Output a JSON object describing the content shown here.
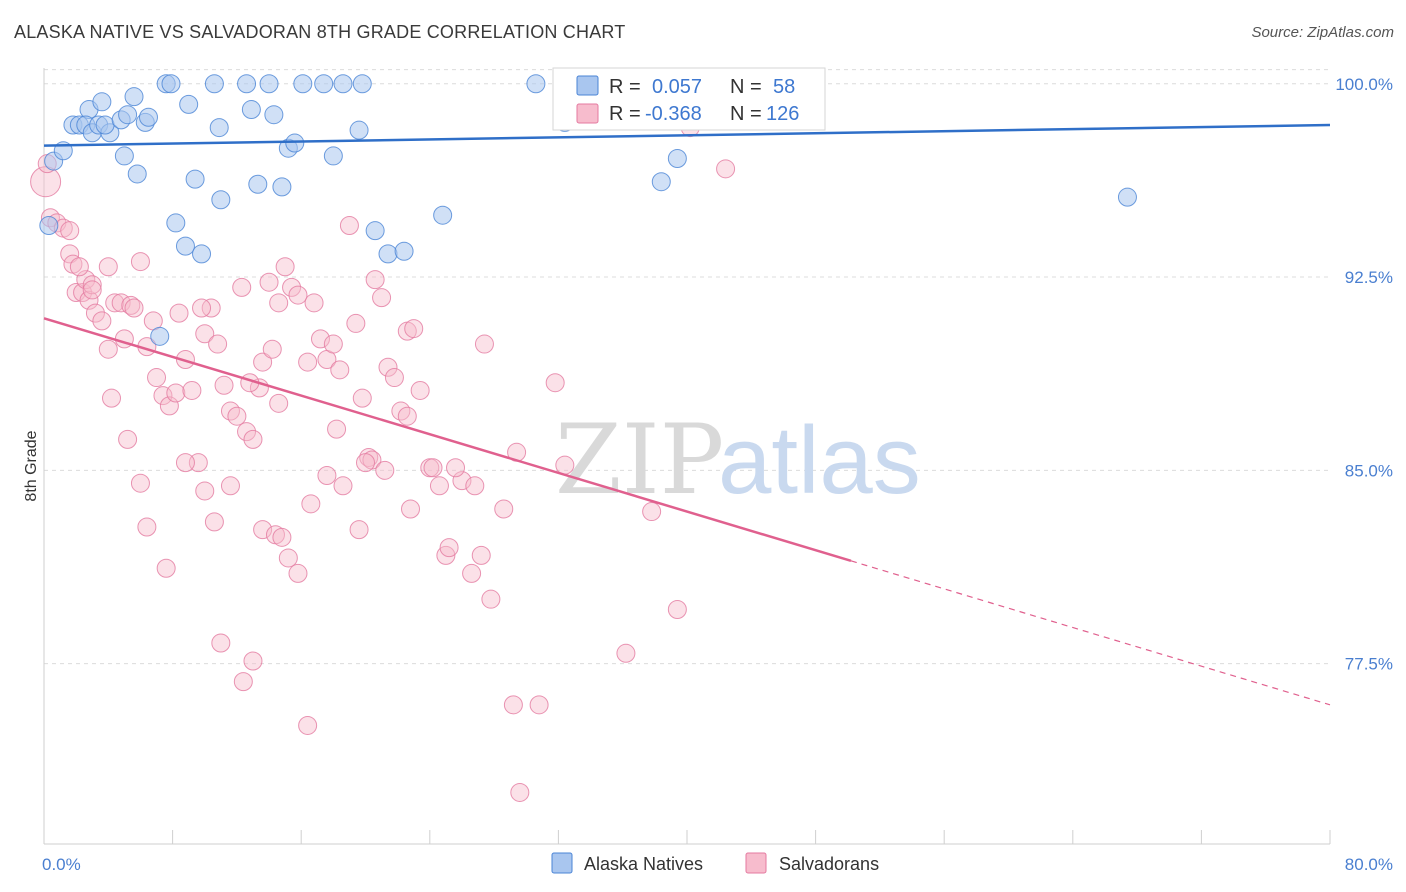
{
  "title": "ALASKA NATIVE VS SALVADORAN 8TH GRADE CORRELATION CHART",
  "source": "Source: ZipAtlas.com",
  "watermark": {
    "zip": "ZIP",
    "atlas": "atlas"
  },
  "colors": {
    "blue_fill": "#a9c6ef",
    "blue_stroke": "#4a84d6",
    "blue_line": "#2f6fc8",
    "pink_fill": "#f7bccd",
    "pink_stroke": "#e47aa0",
    "pink_line": "#e0608e",
    "grid": "#dcdcdc",
    "tick_text": "#4a7fd0"
  },
  "legend": {
    "r_label": "R =",
    "n_label": "N =",
    "rows": [
      {
        "series": "Alaska Natives",
        "r": "0.057",
        "n": "58"
      },
      {
        "series": "Salvadorans",
        "r": "-0.368",
        "n": "126"
      }
    ]
  },
  "chart_data": {
    "type": "scatter",
    "title": "ALASKA NATIVE VS SALVADORAN 8TH GRADE CORRELATION CHART",
    "xlabel": "",
    "ylabel": "8th Grade",
    "xlim": [
      0,
      80
    ],
    "ylim": [
      70.5,
      101.0
    ],
    "x_tick_labels": [
      "0.0%",
      "80.0%"
    ],
    "y_ticks": [
      77.5,
      85.0,
      92.5,
      100.0
    ],
    "y_tick_labels": [
      "77.5%",
      "85.0%",
      "92.5%",
      "100.0%"
    ],
    "grid": "horizontal dashed",
    "legend_position": "top-center",
    "series": [
      {
        "name": "Alaska Natives",
        "trend": {
          "x0": 0,
          "y0": 97.6,
          "x1": 80,
          "y1": 98.4,
          "dashed_from": null
        },
        "points": [
          [
            0.3,
            94.5
          ],
          [
            0.6,
            97.0
          ],
          [
            1.2,
            97.4
          ],
          [
            1.8,
            98.4
          ],
          [
            2.2,
            98.4
          ],
          [
            2.8,
            99.0
          ],
          [
            2.6,
            98.4
          ],
          [
            3.0,
            98.1
          ],
          [
            3.4,
            98.4
          ],
          [
            4.1,
            98.1
          ],
          [
            3.8,
            98.4
          ],
          [
            3.6,
            99.3
          ],
          [
            4.8,
            98.6
          ],
          [
            5.2,
            98.8
          ],
          [
            5.6,
            99.5
          ],
          [
            6.3,
            98.5
          ],
          [
            6.5,
            98.7
          ],
          [
            5.0,
            97.2
          ],
          [
            5.8,
            96.5
          ],
          [
            7.6,
            100.0
          ],
          [
            7.9,
            100.0
          ],
          [
            9.0,
            99.2
          ],
          [
            10.6,
            100.0
          ],
          [
            10.9,
            98.3
          ],
          [
            12.6,
            100.0
          ],
          [
            12.9,
            99.0
          ],
          [
            14.0,
            100.0
          ],
          [
            14.3,
            98.8
          ],
          [
            16.1,
            100.0
          ],
          [
            17.4,
            100.0
          ],
          [
            18.6,
            100.0
          ],
          [
            19.8,
            100.0
          ],
          [
            18.0,
            97.2
          ],
          [
            19.6,
            98.2
          ],
          [
            15.2,
            97.5
          ],
          [
            15.6,
            97.7
          ],
          [
            13.3,
            96.1
          ],
          [
            14.8,
            96.0
          ],
          [
            11.0,
            95.5
          ],
          [
            9.4,
            96.3
          ],
          [
            8.2,
            94.6
          ],
          [
            8.8,
            93.7
          ],
          [
            9.8,
            93.4
          ],
          [
            20.6,
            94.3
          ],
          [
            21.4,
            93.4
          ],
          [
            22.4,
            93.5
          ],
          [
            24.8,
            94.9
          ],
          [
            30.6,
            100.0
          ],
          [
            32.4,
            98.5
          ],
          [
            35.6,
            100.0
          ],
          [
            38.4,
            96.2
          ],
          [
            38.6,
            100.0
          ],
          [
            38.8,
            98.6
          ],
          [
            39.4,
            97.1
          ],
          [
            42.8,
            100.0
          ],
          [
            43.6,
            100.0
          ],
          [
            67.4,
            95.6
          ],
          [
            7.2,
            90.2
          ]
        ]
      },
      {
        "name": "Salvadorans",
        "trend": {
          "x0": 0,
          "y0": 90.9,
          "x1": 80,
          "y1": 75.9,
          "dashed_from": 50.2
        },
        "points": [
          [
            0.1,
            96.2
          ],
          [
            0.2,
            96.9
          ],
          [
            0.4,
            94.8
          ],
          [
            0.8,
            94.6
          ],
          [
            1.2,
            94.4
          ],
          [
            1.6,
            93.4
          ],
          [
            1.8,
            93.0
          ],
          [
            2.0,
            91.9
          ],
          [
            2.4,
            91.9
          ],
          [
            2.6,
            92.4
          ],
          [
            2.8,
            91.6
          ],
          [
            3.0,
            92.2
          ],
          [
            3.2,
            91.1
          ],
          [
            3.6,
            90.8
          ],
          [
            4.0,
            92.9
          ],
          [
            4.4,
            91.5
          ],
          [
            4.8,
            91.5
          ],
          [
            5.0,
            90.1
          ],
          [
            5.4,
            91.4
          ],
          [
            6.0,
            93.1
          ],
          [
            6.4,
            89.8
          ],
          [
            6.8,
            90.8
          ],
          [
            7.0,
            88.6
          ],
          [
            7.4,
            87.9
          ],
          [
            7.8,
            87.5
          ],
          [
            8.2,
            88.0
          ],
          [
            8.4,
            91.1
          ],
          [
            8.8,
            89.3
          ],
          [
            9.2,
            88.1
          ],
          [
            9.6,
            85.3
          ],
          [
            10.0,
            90.3
          ],
          [
            10.4,
            91.3
          ],
          [
            10.8,
            89.9
          ],
          [
            11.2,
            88.3
          ],
          [
            11.6,
            87.3
          ],
          [
            12.0,
            87.1
          ],
          [
            12.3,
            92.1
          ],
          [
            12.6,
            86.5
          ],
          [
            13.0,
            86.2
          ],
          [
            13.4,
            88.2
          ],
          [
            13.6,
            89.2
          ],
          [
            14.0,
            92.3
          ],
          [
            14.2,
            89.7
          ],
          [
            14.6,
            91.5
          ],
          [
            15.0,
            92.9
          ],
          [
            15.4,
            92.1
          ],
          [
            15.8,
            91.8
          ],
          [
            16.4,
            89.2
          ],
          [
            16.8,
            91.5
          ],
          [
            17.2,
            90.1
          ],
          [
            17.6,
            89.3
          ],
          [
            18.0,
            89.9
          ],
          [
            18.4,
            88.9
          ],
          [
            19.0,
            94.5
          ],
          [
            19.4,
            90.7
          ],
          [
            19.8,
            87.8
          ],
          [
            20.2,
            85.5
          ],
          [
            20.6,
            92.4
          ],
          [
            21.0,
            91.7
          ],
          [
            21.4,
            89.0
          ],
          [
            21.8,
            88.6
          ],
          [
            22.2,
            87.3
          ],
          [
            22.6,
            90.4
          ],
          [
            23.0,
            90.5
          ],
          [
            23.4,
            88.1
          ],
          [
            24.0,
            85.1
          ],
          [
            24.6,
            84.4
          ],
          [
            25.0,
            81.7
          ],
          [
            25.2,
            82.0
          ],
          [
            26.0,
            84.6
          ],
          [
            26.6,
            81.0
          ],
          [
            27.4,
            89.9
          ],
          [
            28.6,
            83.5
          ],
          [
            29.4,
            85.7
          ],
          [
            31.8,
            88.4
          ],
          [
            32.4,
            85.2
          ],
          [
            36.2,
            77.9
          ],
          [
            37.8,
            83.4
          ],
          [
            39.4,
            79.6
          ],
          [
            40.2,
            98.3
          ],
          [
            42.4,
            96.7
          ],
          [
            33.0,
            100.0
          ],
          [
            4.0,
            89.7
          ],
          [
            4.2,
            87.8
          ],
          [
            5.2,
            86.2
          ],
          [
            6.0,
            84.5
          ],
          [
            6.4,
            82.8
          ],
          [
            7.6,
            81.2
          ],
          [
            8.8,
            85.3
          ],
          [
            10.0,
            84.2
          ],
          [
            10.6,
            83.0
          ],
          [
            11.0,
            78.3
          ],
          [
            11.6,
            84.4
          ],
          [
            12.4,
            76.8
          ],
          [
            13.0,
            77.6
          ],
          [
            13.6,
            82.7
          ],
          [
            14.4,
            82.5
          ],
          [
            14.8,
            82.4
          ],
          [
            15.2,
            81.6
          ],
          [
            15.8,
            81.0
          ],
          [
            16.6,
            83.7
          ],
          [
            17.6,
            84.8
          ],
          [
            18.6,
            84.4
          ],
          [
            19.6,
            82.7
          ],
          [
            20.4,
            85.4
          ],
          [
            21.2,
            85.0
          ],
          [
            22.8,
            83.5
          ],
          [
            25.6,
            85.1
          ],
          [
            26.8,
            84.4
          ],
          [
            27.2,
            81.7
          ],
          [
            27.8,
            80.0
          ],
          [
            29.2,
            75.9
          ],
          [
            29.6,
            72.5
          ],
          [
            30.8,
            75.9
          ],
          [
            16.4,
            75.1
          ],
          [
            1.6,
            94.3
          ],
          [
            2.2,
            92.9
          ],
          [
            3.0,
            92.0
          ],
          [
            5.6,
            91.3
          ],
          [
            9.8,
            91.3
          ],
          [
            12.8,
            88.4
          ],
          [
            14.6,
            87.6
          ],
          [
            18.2,
            86.6
          ],
          [
            20.0,
            85.3
          ],
          [
            22.6,
            87.1
          ],
          [
            24.2,
            85.1
          ]
        ]
      }
    ]
  },
  "bottom_legend": [
    {
      "label": "Alaska Natives"
    },
    {
      "label": "Salvadorans"
    }
  ]
}
